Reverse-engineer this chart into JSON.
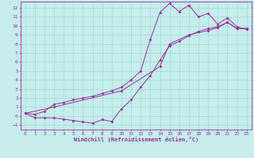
{
  "xlabel": "Windchill (Refroidissement éolien,°C)",
  "bg_color": "#c5eeed",
  "grid_color": "#a8dede",
  "line_color": "#993399",
  "xlim": [
    -0.5,
    23.5
  ],
  "ylim": [
    -1.5,
    12.7
  ],
  "xticks": [
    0,
    1,
    2,
    3,
    4,
    5,
    6,
    7,
    8,
    9,
    10,
    11,
    12,
    13,
    14,
    15,
    16,
    17,
    18,
    19,
    20,
    21,
    22,
    23
  ],
  "yticks": [
    -1,
    0,
    1,
    2,
    3,
    4,
    5,
    6,
    7,
    8,
    9,
    10,
    11,
    12
  ],
  "line1_x": [
    0,
    1,
    2,
    3,
    4,
    5,
    6,
    7,
    8,
    9,
    10,
    11,
    12,
    13,
    14,
    15,
    16,
    17,
    18,
    19,
    20,
    21,
    22,
    23
  ],
  "line1_y": [
    0.3,
    -0.2,
    -0.2,
    -0.2,
    -0.35,
    -0.5,
    -0.65,
    -0.8,
    -0.4,
    -0.6,
    0.8,
    1.8,
    3.2,
    4.5,
    6.2,
    7.8,
    8.3,
    8.9,
    9.4,
    9.7,
    9.9,
    10.4,
    9.7,
    9.7
  ],
  "line2_x": [
    0,
    1,
    2,
    3,
    4,
    5,
    6,
    7,
    8,
    9,
    10,
    11,
    12,
    13,
    14,
    15,
    16,
    17,
    18,
    19,
    20,
    21,
    22,
    23
  ],
  "line2_y": [
    0.3,
    0.2,
    0.5,
    1.3,
    1.5,
    1.8,
    2.0,
    2.2,
    2.5,
    2.8,
    3.2,
    4.0,
    5.0,
    8.5,
    11.5,
    12.5,
    11.6,
    12.3,
    11.0,
    11.4,
    10.2,
    10.9,
    9.9,
    9.6
  ],
  "line3_x": [
    0,
    3,
    10,
    14,
    15,
    17,
    19,
    20,
    21,
    22,
    23
  ],
  "line3_y": [
    0.3,
    1.0,
    2.8,
    5.5,
    8.0,
    9.0,
    9.5,
    9.8,
    10.4,
    9.7,
    9.7
  ]
}
